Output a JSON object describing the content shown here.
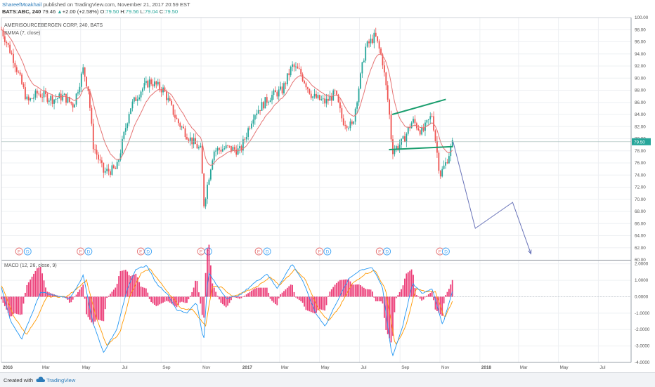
{
  "header": {
    "author": "ShareefMoakhail",
    "published": " published on TradingView.com, November 21, 2017 20:59 EST",
    "symbol": "BATS:ABC, 240",
    "last": "79.46",
    "change_symbol": "▲",
    "change": "+2.00 (+2.58%)",
    "ohlc_o_label": "O:",
    "ohlc_o": "79.50",
    "ohlc_h_label": "H:",
    "ohlc_h": "79.56",
    "ohlc_l_label": "L:",
    "ohlc_l": "79.04",
    "ohlc_c_label": "C:",
    "ohlc_c": "79.50"
  },
  "legend": {
    "title": "AMERISOURCEBERGEN CORP, 240, BATS",
    "indicator": "SMMA (7, close)",
    "macd": "MACD (12, 26, close, 9)"
  },
  "footer": {
    "created_with": "Created with",
    "brand": "TradingView"
  },
  "colors": {
    "up": "#26a69a",
    "down": "#ef5350",
    "smma": "#e57373",
    "grid": "#eef0f3",
    "trend": "#1a9e6e",
    "projection": "#6772b8",
    "macd_line": "#2196f3",
    "signal_line": "#ff9800",
    "histogram": "#e91e63",
    "price_label_bg": "#26a69a"
  },
  "chart_data": [
    {
      "type": "line",
      "subtype": "candlestick_with_smma",
      "title": "AMERISOURCEBERGEN CORP, 240, BATS",
      "series_name": "SMMA (7, close)",
      "ylim": [
        60,
        100
      ],
      "y_ticks": [
        "100.00",
        "98.00",
        "96.00",
        "94.00",
        "92.00",
        "90.00",
        "88.00",
        "86.00",
        "84.00",
        "82.00",
        "80.00",
        "78.00",
        "76.00",
        "74.00",
        "72.00",
        "70.00",
        "68.00",
        "66.00",
        "64.00",
        "62.00",
        "60.00"
      ],
      "x_ticks": [
        "2016",
        "Mar",
        "May",
        "Jul",
        "Sep",
        "Nov",
        "2017",
        "Mar",
        "May",
        "Jul",
        "Sep",
        "Nov",
        "2018",
        "Mar",
        "May",
        "Jul"
      ],
      "last_price_label": "79.50",
      "price_path": [
        [
          "2016-01-01",
          98
        ],
        [
          "2016-01-20",
          93
        ],
        [
          "2016-02-10",
          86
        ],
        [
          "2016-02-25",
          87.5
        ],
        [
          "2016-03-20",
          86.5
        ],
        [
          "2016-04-05",
          87
        ],
        [
          "2016-04-20",
          85.5
        ],
        [
          "2016-05-05",
          91.5
        ],
        [
          "2016-05-13",
          88
        ],
        [
          "2016-05-20",
          79
        ],
        [
          "2016-06-05",
          74.5
        ],
        [
          "2016-06-25",
          75
        ],
        [
          "2016-07-15",
          85
        ],
        [
          "2016-08-01",
          88
        ],
        [
          "2016-08-15",
          89.5
        ],
        [
          "2016-09-05",
          88
        ],
        [
          "2016-09-25",
          83
        ],
        [
          "2016-10-15",
          80
        ],
        [
          "2016-11-01",
          78
        ],
        [
          "2016-11-05",
          69
        ],
        [
          "2016-11-20",
          78
        ],
        [
          "2016-12-10",
          78.5
        ],
        [
          "2016-12-31",
          78
        ],
        [
          "2017-01-20",
          84
        ],
        [
          "2017-02-15",
          87
        ],
        [
          "2017-03-05",
          88
        ],
        [
          "2017-03-20",
          92
        ],
        [
          "2017-04-01",
          91
        ],
        [
          "2017-04-20",
          87
        ],
        [
          "2017-05-10",
          86
        ],
        [
          "2017-05-25",
          87.5
        ],
        [
          "2017-06-05",
          83
        ],
        [
          "2017-06-20",
          82
        ],
        [
          "2017-07-10",
          95
        ],
        [
          "2017-07-25",
          97
        ],
        [
          "2017-08-05",
          93
        ],
        [
          "2017-08-15",
          85
        ],
        [
          "2017-08-20",
          78
        ],
        [
          "2017-09-05",
          79.5
        ],
        [
          "2017-09-20",
          83
        ],
        [
          "2017-10-05",
          81
        ],
        [
          "2017-10-20",
          84
        ],
        [
          "2017-11-01",
          74
        ],
        [
          "2017-11-10",
          76
        ],
        [
          "2017-11-21",
          79.5
        ]
      ],
      "trendlines": [
        {
          "from": [
            "2017-08-20",
            84
          ],
          "to": [
            "2017-11-10",
            86.5
          ]
        },
        {
          "from": [
            "2017-08-15",
            78.2
          ],
          "to": [
            "2017-11-21",
            78.7
          ]
        }
      ],
      "projection_path": [
        [
          "2017-11-21",
          79.5
        ],
        [
          "2017-12-25",
          65.2
        ],
        [
          "2018-02-20",
          69.5
        ],
        [
          "2018-03-20",
          61
        ]
      ],
      "event_markers": [
        {
          "label": "E",
          "date": "2016-01-28"
        },
        {
          "label": "D",
          "date": "2016-02-10"
        },
        {
          "label": "E",
          "date": "2016-05-01"
        },
        {
          "label": "D",
          "date": "2016-05-13"
        },
        {
          "label": "E",
          "date": "2016-08-01"
        },
        {
          "label": "D",
          "date": "2016-08-12"
        },
        {
          "label": "E",
          "date": "2016-11-01"
        },
        {
          "label": "D",
          "date": "2016-11-12"
        },
        {
          "label": "E",
          "date": "2017-01-28"
        },
        {
          "label": "D",
          "date": "2017-02-10"
        },
        {
          "label": "E",
          "date": "2017-05-01"
        },
        {
          "label": "D",
          "date": "2017-05-13"
        },
        {
          "label": "E",
          "date": "2017-08-01"
        },
        {
          "label": "D",
          "date": "2017-08-12"
        },
        {
          "label": "E",
          "date": "2017-11-01"
        },
        {
          "label": "D",
          "date": "2017-11-10"
        }
      ]
    },
    {
      "type": "line",
      "subtype": "macd",
      "title": "MACD (12, 26, close, 9)",
      "ylim": [
        -4,
        2.2
      ],
      "y_ticks": [
        "2.0000",
        "1.0000",
        "0.0000",
        "-1.0000",
        "-2.0000",
        "-3.0000",
        "-4.0000"
      ],
      "macd_path": [
        [
          "2016-01-01",
          0.6
        ],
        [
          "2016-01-15",
          -1.5
        ],
        [
          "2016-02-01",
          -2.6
        ],
        [
          "2016-02-15",
          -1.2
        ],
        [
          "2016-03-01",
          0.3
        ],
        [
          "2016-03-20",
          0.1
        ],
        [
          "2016-04-15",
          -0.1
        ],
        [
          "2016-05-05",
          1.3
        ],
        [
          "2016-05-20",
          -1.6
        ],
        [
          "2016-06-05",
          -3.4
        ],
        [
          "2016-06-25",
          -2.0
        ],
        [
          "2016-07-10",
          0.3
        ],
        [
          "2016-07-25",
          1.7
        ],
        [
          "2016-08-10",
          1.9
        ],
        [
          "2016-08-25",
          0.8
        ],
        [
          "2016-09-10",
          0.2
        ],
        [
          "2016-09-25",
          -0.8
        ],
        [
          "2016-10-10",
          -1.0
        ],
        [
          "2016-10-25",
          -0.3
        ],
        [
          "2016-11-05",
          -2.7
        ],
        [
          "2016-11-12",
          1.5
        ],
        [
          "2016-11-25",
          0.7
        ],
        [
          "2016-12-10",
          -0.1
        ],
        [
          "2016-12-31",
          0.1
        ],
        [
          "2017-01-20",
          0.8
        ],
        [
          "2017-02-10",
          1.4
        ],
        [
          "2017-02-25",
          0.5
        ],
        [
          "2017-03-20",
          2.0
        ],
        [
          "2017-04-05",
          1.0
        ],
        [
          "2017-04-25",
          -1.0
        ],
        [
          "2017-05-10",
          -1.8
        ],
        [
          "2017-05-25",
          -0.5
        ],
        [
          "2017-06-15",
          1.1
        ],
        [
          "2017-07-01",
          1.6
        ],
        [
          "2017-07-20",
          1.8
        ],
        [
          "2017-08-05",
          0.6
        ],
        [
          "2017-08-20",
          -3.7
        ],
        [
          "2017-09-05",
          -1.8
        ],
        [
          "2017-09-20",
          0.8
        ],
        [
          "2017-10-05",
          0.2
        ],
        [
          "2017-10-20",
          0.5
        ],
        [
          "2017-11-05",
          -1.7
        ],
        [
          "2017-11-15",
          -0.4
        ],
        [
          "2017-11-21",
          0.5
        ]
      ],
      "signal_path": [
        [
          "2016-01-01",
          0.7
        ],
        [
          "2016-01-20",
          -1.2
        ],
        [
          "2016-02-08",
          -2.3
        ],
        [
          "2016-02-25",
          -1.3
        ],
        [
          "2016-03-10",
          0.0
        ],
        [
          "2016-04-10",
          0.0
        ],
        [
          "2016-05-10",
          1.0
        ],
        [
          "2016-05-25",
          -1.3
        ],
        [
          "2016-06-10",
          -3.0
        ],
        [
          "2016-06-30",
          -2.2
        ],
        [
          "2016-07-15",
          0.0
        ],
        [
          "2016-08-01",
          1.4
        ],
        [
          "2016-08-15",
          1.7
        ],
        [
          "2016-08-30",
          0.9
        ],
        [
          "2016-09-15",
          0.1
        ],
        [
          "2016-10-01",
          -0.7
        ],
        [
          "2016-10-20",
          -0.8
        ],
        [
          "2016-11-08",
          -1.8
        ],
        [
          "2016-11-18",
          0.6
        ],
        [
          "2016-12-01",
          0.6
        ],
        [
          "2016-12-20",
          0.0
        ],
        [
          "2017-01-25",
          0.6
        ],
        [
          "2017-02-15",
          1.2
        ],
        [
          "2017-03-01",
          0.7
        ],
        [
          "2017-03-25",
          1.7
        ],
        [
          "2017-04-10",
          1.0
        ],
        [
          "2017-04-30",
          -0.8
        ],
        [
          "2017-05-15",
          -1.5
        ],
        [
          "2017-06-01",
          -0.6
        ],
        [
          "2017-06-20",
          0.8
        ],
        [
          "2017-07-10",
          1.4
        ],
        [
          "2017-07-25",
          1.6
        ],
        [
          "2017-08-10",
          0.4
        ],
        [
          "2017-08-25",
          -3.0
        ],
        [
          "2017-09-10",
          -1.8
        ],
        [
          "2017-09-25",
          0.5
        ],
        [
          "2017-10-10",
          0.3
        ],
        [
          "2017-10-25",
          0.3
        ],
        [
          "2017-11-08",
          -1.3
        ],
        [
          "2017-11-21",
          -0.2
        ]
      ]
    }
  ]
}
